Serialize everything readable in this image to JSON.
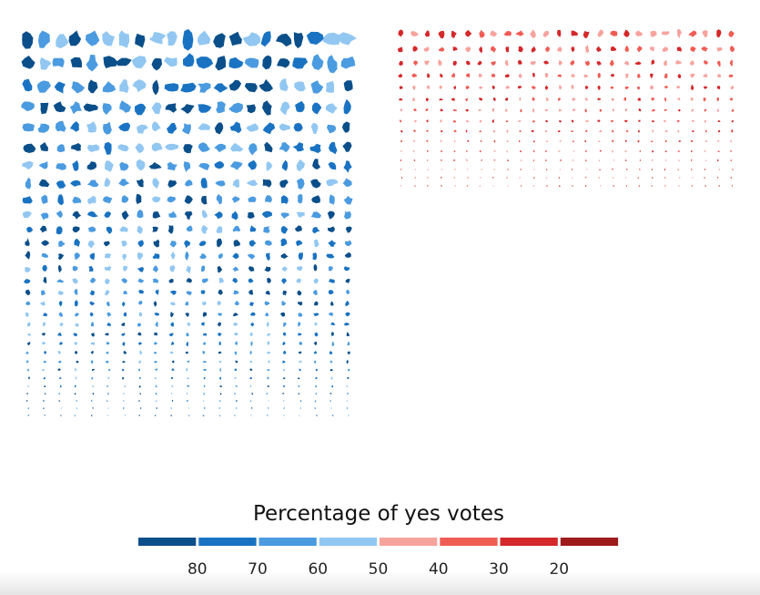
{
  "chart_data": {
    "type": "scatter",
    "title": "",
    "mark_shape": "district-silhouettes",
    "legend": {
      "title": "Percentage of yes votes",
      "bins": [
        {
          "color": "#0b4f8a"
        },
        {
          "color": "#1a73c2"
        },
        {
          "color": "#4b9be0"
        },
        {
          "color": "#92c7f2"
        },
        {
          "color": "#f7a39d"
        },
        {
          "color": "#ef5c54"
        },
        {
          "color": "#d4282a"
        },
        {
          "color": "#9e1b1b"
        }
      ],
      "tick_labels": [
        "80",
        "70",
        "60",
        "50",
        "40",
        "30",
        "20"
      ]
    },
    "series": [
      {
        "outcome": "yes",
        "palette": [
          "#0b4f8a",
          "#1a73c2",
          "#4b9be0",
          "#92c7f2"
        ],
        "columns": 21,
        "rows": [
          {
            "count": 21,
            "size": 1.0
          },
          {
            "count": 21,
            "size": 0.92
          },
          {
            "count": 21,
            "size": 0.86
          },
          {
            "count": 21,
            "size": 0.8
          },
          {
            "count": 21,
            "size": 0.74
          },
          {
            "count": 21,
            "size": 0.7
          },
          {
            "count": 21,
            "size": 0.66
          },
          {
            "count": 21,
            "size": 0.62
          },
          {
            "count": 21,
            "size": 0.58
          },
          {
            "count": 21,
            "size": 0.54
          },
          {
            "count": 21,
            "size": 0.5
          },
          {
            "count": 21,
            "size": 0.47
          },
          {
            "count": 21,
            "size": 0.44
          },
          {
            "count": 21,
            "size": 0.41
          },
          {
            "count": 21,
            "size": 0.38
          },
          {
            "count": 21,
            "size": 0.35
          },
          {
            "count": 21,
            "size": 0.32
          },
          {
            "count": 21,
            "size": 0.3
          },
          {
            "count": 21,
            "size": 0.28
          },
          {
            "count": 21,
            "size": 0.26
          },
          {
            "count": 21,
            "size": 0.24
          },
          {
            "count": 21,
            "size": 0.22
          },
          {
            "count": 21,
            "size": 0.2
          },
          {
            "count": 21,
            "size": 0.18
          },
          {
            "count": 21,
            "size": 0.16
          },
          {
            "count": 21,
            "size": 0.14
          },
          {
            "count": 21,
            "size": 0.12
          },
          {
            "count": 21,
            "size": 0.11
          },
          {
            "count": 21,
            "size": 0.1
          },
          {
            "count": 21,
            "size": 0.09
          }
        ]
      },
      {
        "outcome": "no",
        "palette": [
          "#f7a39d",
          "#ef5c54",
          "#d4282a"
        ],
        "columns": 26,
        "rows": [
          {
            "count": 26,
            "size": 0.56
          },
          {
            "count": 26,
            "size": 0.46
          },
          {
            "count": 26,
            "size": 0.4
          },
          {
            "count": 26,
            "size": 0.35
          },
          {
            "count": 26,
            "size": 0.31
          },
          {
            "count": 26,
            "size": 0.28
          },
          {
            "count": 26,
            "size": 0.25
          },
          {
            "count": 26,
            "size": 0.22
          },
          {
            "count": 26,
            "size": 0.2
          },
          {
            "count": 26,
            "size": 0.18
          },
          {
            "count": 26,
            "size": 0.16
          },
          {
            "count": 26,
            "size": 0.14
          },
          {
            "count": 26,
            "size": 0.12
          },
          {
            "count": 26,
            "size": 0.1
          },
          {
            "count": 26,
            "size": 0.08
          }
        ]
      }
    ]
  }
}
